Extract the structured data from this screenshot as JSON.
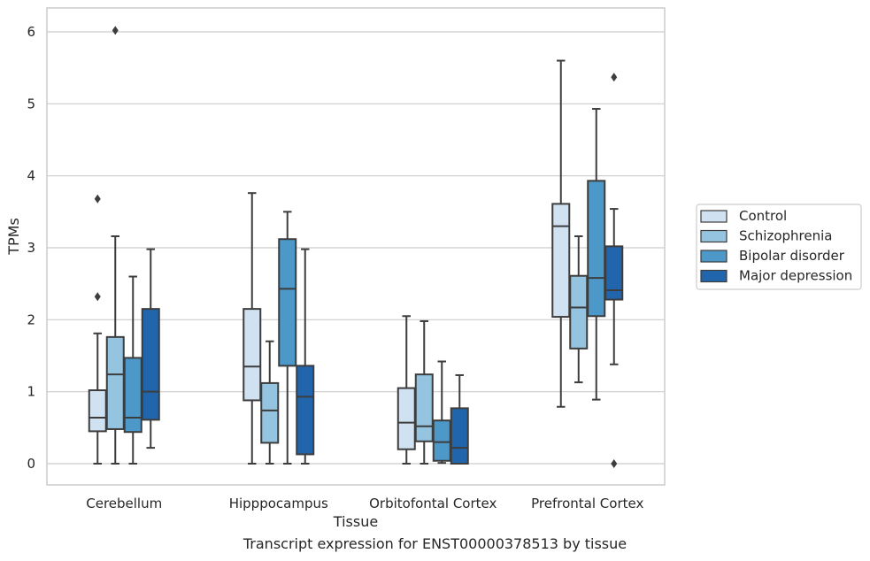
{
  "chart_data": {
    "type": "box",
    "xlabel": "Tissue",
    "ylabel": "TPMs",
    "caption": "Transcript expression for ENST00000378513 by tissue",
    "ylim": [
      -0.3,
      6.35
    ],
    "yticks": [
      0,
      1,
      2,
      3,
      4,
      5,
      6
    ],
    "grid": "horizontal",
    "legend_position": "right",
    "categories": [
      "Cerebellum",
      "Hipppocampus",
      "Orbitofontal Cortex",
      "Prefrontal Cortex"
    ],
    "series": [
      {
        "name": "Control",
        "color": "#d0e1f2",
        "boxes": [
          {
            "whislo": 0,
            "q1": 0.45,
            "med": 0.64,
            "q3": 1.02,
            "whishi": 1.81,
            "fliers": [
              2.32,
              3.68
            ]
          },
          {
            "whislo": 0,
            "q1": 0.88,
            "med": 1.35,
            "q3": 2.15,
            "whishi": 3.76,
            "fliers": []
          },
          {
            "whislo": 0,
            "q1": 0.2,
            "med": 0.57,
            "q3": 1.05,
            "whishi": 2.05,
            "fliers": []
          },
          {
            "whislo": 0.79,
            "q1": 2.04,
            "med": 3.3,
            "q3": 3.61,
            "whishi": 5.6,
            "fliers": []
          }
        ]
      },
      {
        "name": "Schizophrenia",
        "color": "#94c4df",
        "boxes": [
          {
            "whislo": 0,
            "q1": 0.48,
            "med": 1.24,
            "q3": 1.76,
            "whishi": 3.16,
            "fliers": [
              6.02
            ]
          },
          {
            "whislo": 0,
            "q1": 0.29,
            "med": 0.74,
            "q3": 1.12,
            "whishi": 1.7,
            "fliers": []
          },
          {
            "whislo": 0,
            "q1": 0.31,
            "med": 0.52,
            "q3": 1.24,
            "whishi": 1.98,
            "fliers": []
          },
          {
            "whislo": 1.13,
            "q1": 1.6,
            "med": 2.17,
            "q3": 2.61,
            "whishi": 3.16,
            "fliers": []
          }
        ]
      },
      {
        "name": "Bipolar disorder",
        "color": "#4b98c9",
        "boxes": [
          {
            "whislo": 0,
            "q1": 0.44,
            "med": 0.64,
            "q3": 1.47,
            "whishi": 2.6,
            "fliers": []
          },
          {
            "whislo": 0,
            "q1": 1.36,
            "med": 2.43,
            "q3": 3.12,
            "whishi": 3.5,
            "fliers": []
          },
          {
            "whislo": 0.01,
            "q1": 0.04,
            "med": 0.3,
            "q3": 0.6,
            "whishi": 1.42,
            "fliers": []
          },
          {
            "whislo": 0.89,
            "q1": 2.05,
            "med": 2.58,
            "q3": 3.93,
            "whishi": 4.93,
            "fliers": []
          }
        ]
      },
      {
        "name": "Major depression",
        "color": "#2166ac",
        "boxes": [
          {
            "whislo": 0.22,
            "q1": 0.61,
            "med": 1.0,
            "q3": 2.15,
            "whishi": 2.98,
            "fliers": []
          },
          {
            "whislo": 0,
            "q1": 0.13,
            "med": 0.93,
            "q3": 1.36,
            "whishi": 2.98,
            "fliers": []
          },
          {
            "whislo": 0,
            "q1": 0.0,
            "med": 0.22,
            "q3": 0.77,
            "whishi": 1.23,
            "fliers": []
          },
          {
            "whislo": 1.38,
            "q1": 2.28,
            "med": 2.41,
            "q3": 3.02,
            "whishi": 3.54,
            "fliers": [
              0,
              5.37
            ]
          }
        ]
      }
    ]
  }
}
